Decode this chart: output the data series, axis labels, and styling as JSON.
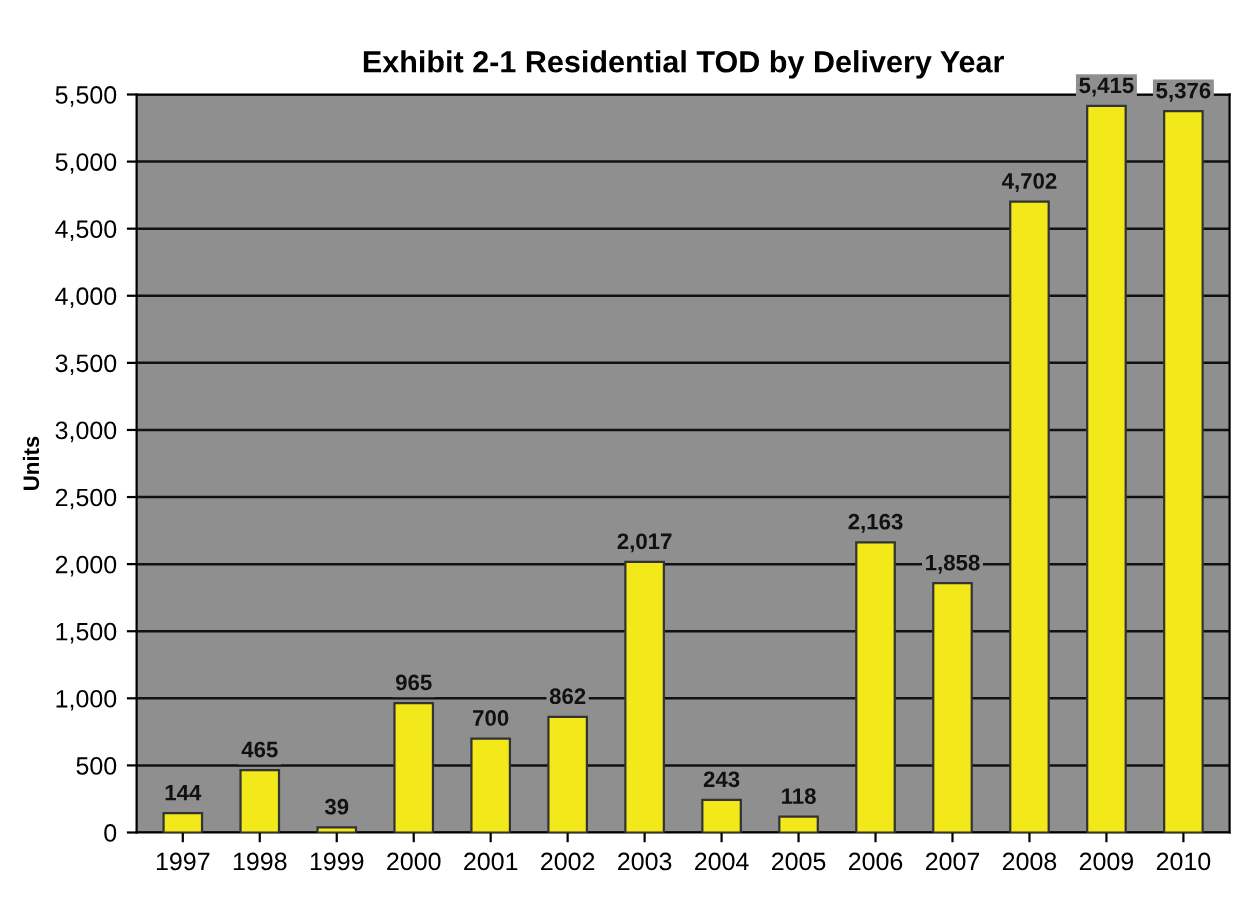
{
  "chart_data": {
    "type": "bar",
    "title": "Exhibit 2-1 Residential TOD by Delivery Year",
    "ylabel": "Units",
    "categories": [
      "1997",
      "1998",
      "1999",
      "2000",
      "2001",
      "2002",
      "2003",
      "2004",
      "2005",
      "2006",
      "2007",
      "2008",
      "2009",
      "2010"
    ],
    "values": [
      144,
      465,
      39,
      965,
      700,
      862,
      2017,
      243,
      118,
      2163,
      1858,
      4702,
      5415,
      5376
    ],
    "value_labels": [
      "144",
      "465",
      "39",
      "965",
      "700",
      "862",
      "2,017",
      "243",
      "118",
      "2,163",
      "1,858",
      "4,702",
      "5,415",
      "5,376"
    ],
    "color": "#f2e81a",
    "ylim": [
      0,
      5500
    ],
    "yticks": [
      0,
      {
        "value": 500,
        "label": "500"
      },
      {
        "value": 1000,
        "label": "1,000"
      },
      {
        "value": 1500,
        "label": "1,500"
      },
      {
        "value": 2000,
        "label": "2,000"
      },
      {
        "value": 2500,
        "label": "2,500"
      },
      {
        "value": 3000,
        "label": "3,000"
      },
      {
        "value": 3500,
        "label": "3,500"
      },
      {
        "value": 4000,
        "label": "4,000"
      },
      {
        "value": 4500,
        "label": "4,500"
      },
      {
        "value": 5000,
        "label": "5,000"
      },
      {
        "value": 5500,
        "label": "5,500"
      }
    ],
    "grid": "y"
  }
}
